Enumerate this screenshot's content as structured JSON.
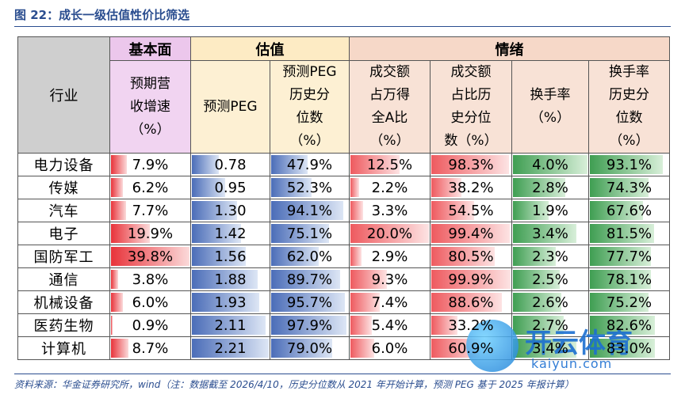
{
  "title": "图 22：成长一级估值性价比筛选",
  "groups": {
    "industry": "行业",
    "base": "基本面",
    "valuation": "估值",
    "mood": "情绪"
  },
  "columns": [
    "预期营\n收增速\n（%）",
    "预测PEG",
    "预测PEG\n历史分\n位数\n（%）",
    "成交额\n占万得\n全A比\n（%）",
    "成交额\n占比历\n史分位\n数（%）",
    "换手率\n（%）",
    "换手率\n历史分\n位数\n（%）"
  ],
  "rows": [
    {
      "industry": "电力设备",
      "revenue_growth": "7.9%",
      "peg": "0.78",
      "peg_pct": "47.9%",
      "turnover_share": "12.5%",
      "share_pct": "98.3%",
      "turnover": "4.0%",
      "turnover_pct": "93.1%"
    },
    {
      "industry": "传媒",
      "revenue_growth": "6.2%",
      "peg": "0.95",
      "peg_pct": "52.3%",
      "turnover_share": "2.2%",
      "share_pct": "38.2%",
      "turnover": "2.8%",
      "turnover_pct": "74.3%"
    },
    {
      "industry": "汽车",
      "revenue_growth": "7.7%",
      "peg": "1.30",
      "peg_pct": "94.1%",
      "turnover_share": "3.3%",
      "share_pct": "54.5%",
      "turnover": "1.9%",
      "turnover_pct": "67.6%"
    },
    {
      "industry": "电子",
      "revenue_growth": "19.9%",
      "peg": "1.42",
      "peg_pct": "75.1%",
      "turnover_share": "20.0%",
      "share_pct": "99.4%",
      "turnover": "3.4%",
      "turnover_pct": "81.5%"
    },
    {
      "industry": "国防军工",
      "revenue_growth": "39.8%",
      "peg": "1.56",
      "peg_pct": "62.0%",
      "turnover_share": "2.9%",
      "share_pct": "80.5%",
      "turnover": "2.3%",
      "turnover_pct": "77.7%"
    },
    {
      "industry": "通信",
      "revenue_growth": "3.8%",
      "peg": "1.88",
      "peg_pct": "89.7%",
      "turnover_share": "9.3%",
      "share_pct": "99.9%",
      "turnover": "2.5%",
      "turnover_pct": "78.1%"
    },
    {
      "industry": "机械设备",
      "revenue_growth": "6.0%",
      "peg": "1.93",
      "peg_pct": "95.7%",
      "turnover_share": "7.4%",
      "share_pct": "88.6%",
      "turnover": "2.6%",
      "turnover_pct": "75.2%"
    },
    {
      "industry": "医药生物",
      "revenue_growth": "0.9%",
      "peg": "2.11",
      "peg_pct": "97.9%",
      "turnover_share": "5.4%",
      "share_pct": "33.2%",
      "turnover": "2.7%",
      "turnover_pct": "82.6%"
    },
    {
      "industry": "计算机",
      "revenue_growth": "8.7%",
      "peg": "2.21",
      "peg_pct": "79.0%",
      "turnover_share": "6.0%",
      "share_pct": "60.9%",
      "turnover": "3.4%",
      "turnover_pct": "83.0%"
    }
  ],
  "source": "资料来源：华金证券研究所，wind（注：数据截至 2026/4/10，历史分位数从 2021 年开始计算，预测 PEG 基于 2025 年报计算）",
  "watermark": {
    "cn": "开云体育",
    "en": "kaiyun.com"
  }
}
